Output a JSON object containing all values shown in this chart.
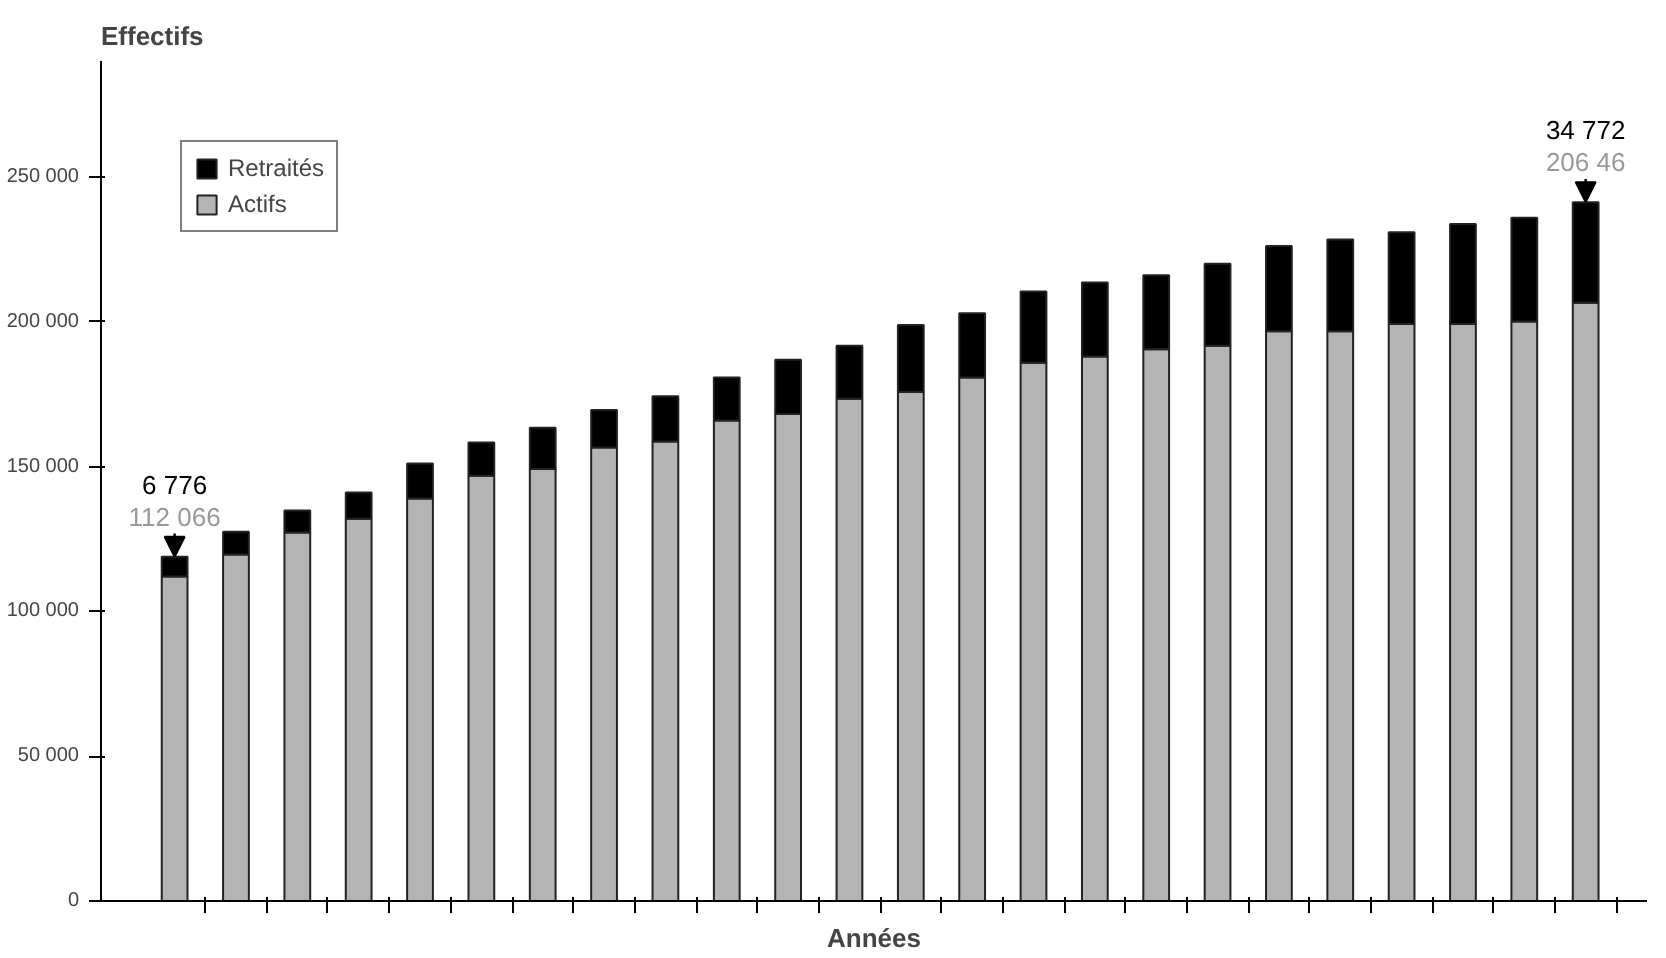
{
  "chart_data": {
    "type": "bar",
    "title": "Effectifs",
    "xlabel": "Années",
    "stacked": true,
    "legend": "top left",
    "grid": false,
    "categories": [
      null,
      null,
      null,
      null,
      null,
      null,
      null,
      null,
      null,
      null,
      null,
      null,
      null,
      null,
      null,
      null,
      null,
      null,
      null,
      null,
      null,
      null,
      null,
      null
    ],
    "series": [
      {
        "name": "Actifs",
        "color": "#b4b4b4",
        "values": [
          112066,
          119600,
          127200,
          132000,
          139000,
          146800,
          149100,
          156600,
          158600,
          165900,
          168100,
          173400,
          175700,
          180700,
          185800,
          188000,
          190500,
          191700,
          196700,
          196700,
          199200,
          199200,
          200100,
          206500
        ],
        "value_labels": [
          "112 066",
          null,
          null,
          null,
          null,
          null,
          null,
          null,
          null,
          null,
          null,
          null,
          null,
          null,
          null,
          null,
          null,
          null,
          null,
          null,
          null,
          null,
          null,
          null
        ]
      },
      {
        "name": "Retraités",
        "color": "#000000",
        "values": [
          6776,
          7900,
          7600,
          9000,
          12000,
          11500,
          14300,
          12900,
          15700,
          14800,
          18800,
          18300,
          23200,
          22200,
          24600,
          25500,
          25500,
          28300,
          29400,
          31700,
          31700,
          34500,
          35800,
          34772
        ],
        "value_labels": [
          "6 776",
          null,
          null,
          null,
          null,
          null,
          null,
          null,
          null,
          null,
          null,
          null,
          null,
          null,
          null,
          null,
          null,
          null,
          null,
          null,
          null,
          null,
          null,
          "34 772"
        ]
      }
    ],
    "annotations": [
      "206 46"
    ],
    "ylim": [
      0,
      290000
    ],
    "yticks": [
      {
        "value": 0,
        "label": "0"
      },
      {
        "value": 50000,
        "label": "50 000"
      },
      {
        "value": 100000,
        "label": "100 000"
      },
      {
        "value": 150000,
        "label": "150 000"
      },
      {
        "value": 200000,
        "label": "200 000"
      },
      {
        "value": 250000,
        "label": "250 000"
      }
    ]
  }
}
